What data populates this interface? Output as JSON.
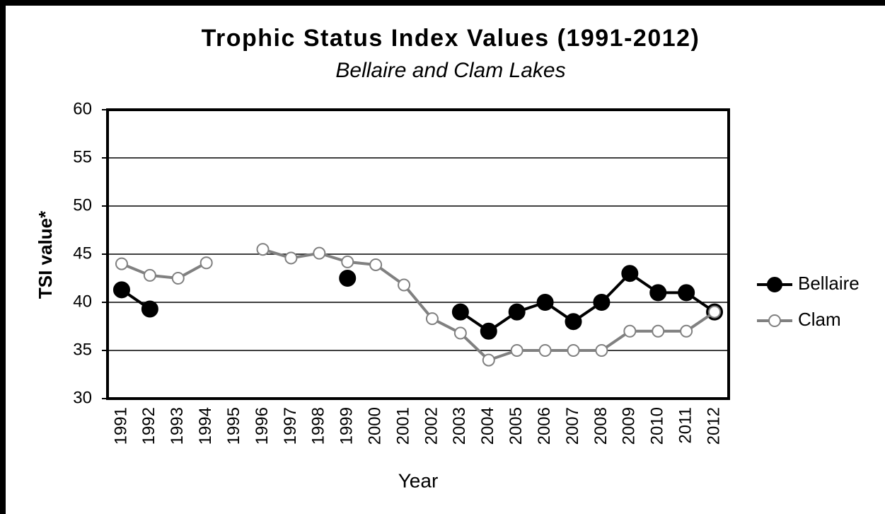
{
  "chart_data": {
    "type": "line",
    "title": "Trophic Status Index Values (1991-2012)",
    "subtitle": "Bellaire and Clam Lakes",
    "x_label": "Year",
    "y_label": "TSI value*",
    "categories": [
      "1991",
      "1992",
      "1993",
      "1994",
      "1995",
      "1996",
      "1997",
      "1998",
      "1999",
      "2000",
      "2001",
      "2002",
      "2003",
      "2004",
      "2005",
      "2006",
      "2007",
      "2008",
      "2009",
      "2010",
      "2011",
      "2012"
    ],
    "series": [
      {
        "name": "Bellaire",
        "color": "#000000",
        "marker_fill": "#000000",
        "values": [
          41.3,
          39.3,
          null,
          null,
          null,
          null,
          null,
          null,
          42.5,
          null,
          null,
          null,
          39,
          37,
          39,
          40,
          38,
          40,
          43,
          41,
          41,
          39
        ]
      },
      {
        "name": "Clam",
        "color": "#808080",
        "marker_fill": "#ffffff",
        "values": [
          44,
          42.8,
          42.5,
          44.1,
          null,
          45.5,
          44.6,
          45.1,
          44.2,
          43.9,
          41.8,
          38.3,
          36.8,
          34,
          35,
          35,
          35,
          35,
          37,
          37,
          37,
          39
        ]
      }
    ],
    "ylim": [
      30,
      60
    ],
    "yticks": [
      30,
      35,
      40,
      45,
      50,
      55,
      60
    ],
    "grid": true,
    "legend": "right"
  }
}
